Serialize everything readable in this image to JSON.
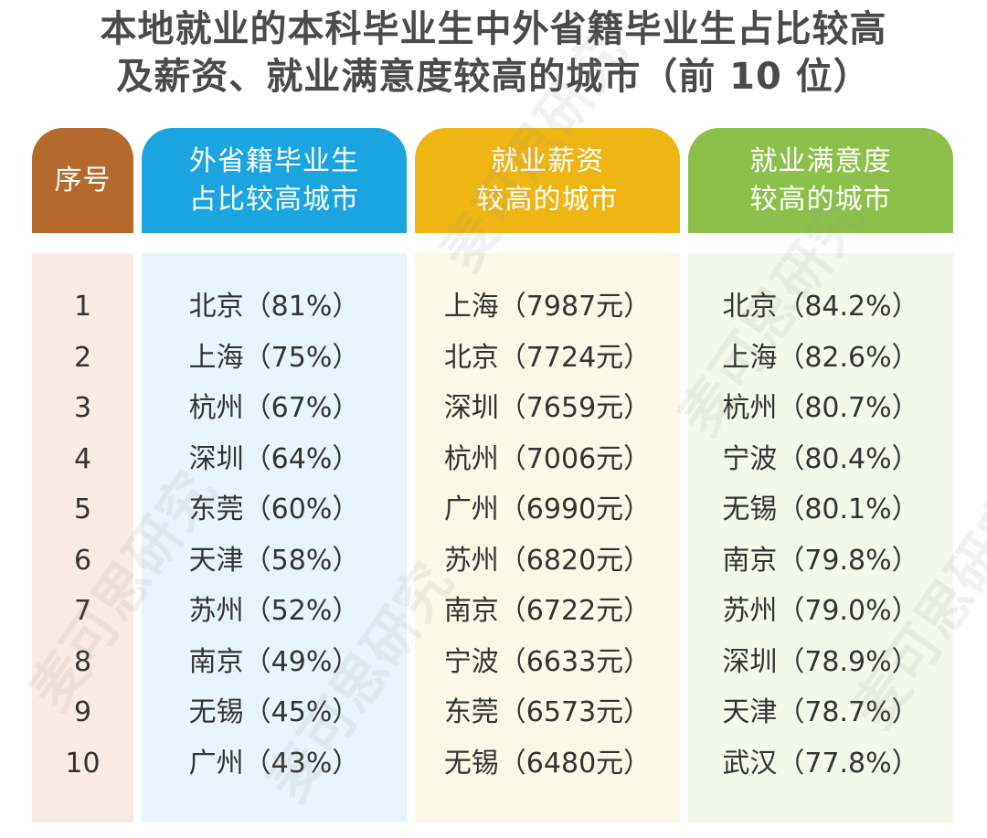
{
  "title": {
    "line1": "本地就业的本科毕业生中外省籍毕业生占比较高",
    "line2": "及薪资、就业满意度较高的城市（前 10 位）"
  },
  "columns": {
    "rank": {
      "header": [
        "序号"
      ]
    },
    "out_of_province": {
      "header": [
        "外省籍毕业生",
        "占比较高城市"
      ]
    },
    "salary": {
      "header": [
        "就业薪资",
        "较高的城市"
      ]
    },
    "satisfaction": {
      "header": [
        "就业满意度",
        "较高的城市"
      ]
    }
  },
  "rows": [
    {
      "rank": "1",
      "out_of_province": "北京（81%）",
      "salary": "上海（7987元）",
      "satisfaction": "北京（84.2%）"
    },
    {
      "rank": "2",
      "out_of_province": "上海（75%）",
      "salary": "北京（7724元）",
      "satisfaction": "上海（82.6%）"
    },
    {
      "rank": "3",
      "out_of_province": "杭州（67%）",
      "salary": "深圳（7659元）",
      "satisfaction": "杭州（80.7%）"
    },
    {
      "rank": "4",
      "out_of_province": "深圳（64%）",
      "salary": "杭州（7006元）",
      "satisfaction": "宁波（80.4%）"
    },
    {
      "rank": "5",
      "out_of_province": "东莞（60%）",
      "salary": "广州（6990元）",
      "satisfaction": "无锡（80.1%）"
    },
    {
      "rank": "6",
      "out_of_province": "天津（58%）",
      "salary": "苏州（6820元）",
      "satisfaction": "南京（79.8%）"
    },
    {
      "rank": "7",
      "out_of_province": "苏州（52%）",
      "salary": "南京（6722元）",
      "satisfaction": "苏州（79.0%）"
    },
    {
      "rank": "8",
      "out_of_province": "南京（49%）",
      "salary": "宁波（6633元）",
      "satisfaction": "深圳（78.9%）"
    },
    {
      "rank": "9",
      "out_of_province": "无锡（45%）",
      "salary": "东莞（6573元）",
      "satisfaction": "天津（78.7%）"
    },
    {
      "rank": "10",
      "out_of_province": "广州（43%）",
      "salary": "无锡（6480元）",
      "satisfaction": "武汉（77.8%）"
    }
  ],
  "colors": {
    "rank_header": "#b46a2c",
    "out_of_province_header": "#1aa5e0",
    "salary_header": "#efb512",
    "satisfaction_header": "#8cc04a"
  },
  "watermark": "麦可思研究"
}
